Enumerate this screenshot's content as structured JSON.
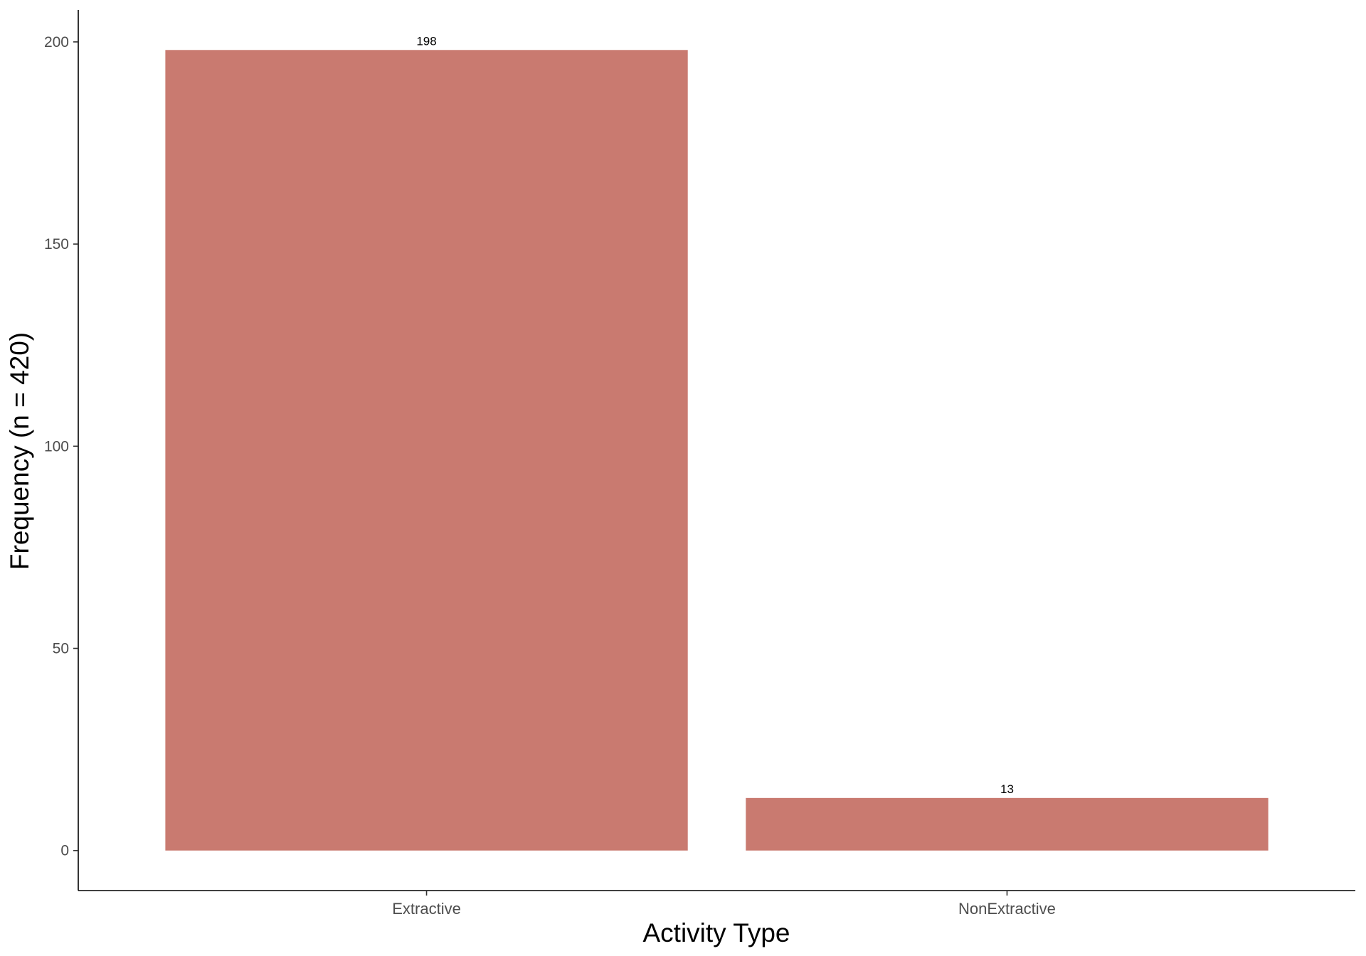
{
  "chart_data": {
    "type": "bar",
    "categories": [
      "Extractive",
      "NonExtractive"
    ],
    "values": [
      198,
      13
    ],
    "data_labels": [
      "198",
      "13"
    ],
    "xlabel": "Activity Type",
    "ylabel": "Frequency (n = 420)",
    "ylim": [
      -9.9,
      207.9
    ],
    "yticks": [
      0,
      50,
      100,
      150,
      200
    ],
    "ytick_labels": [
      "0",
      "50",
      "100",
      "150",
      "200"
    ],
    "grid": false,
    "legend": "none",
    "bar_color": "#C97A70",
    "axis_color": "#000000"
  }
}
